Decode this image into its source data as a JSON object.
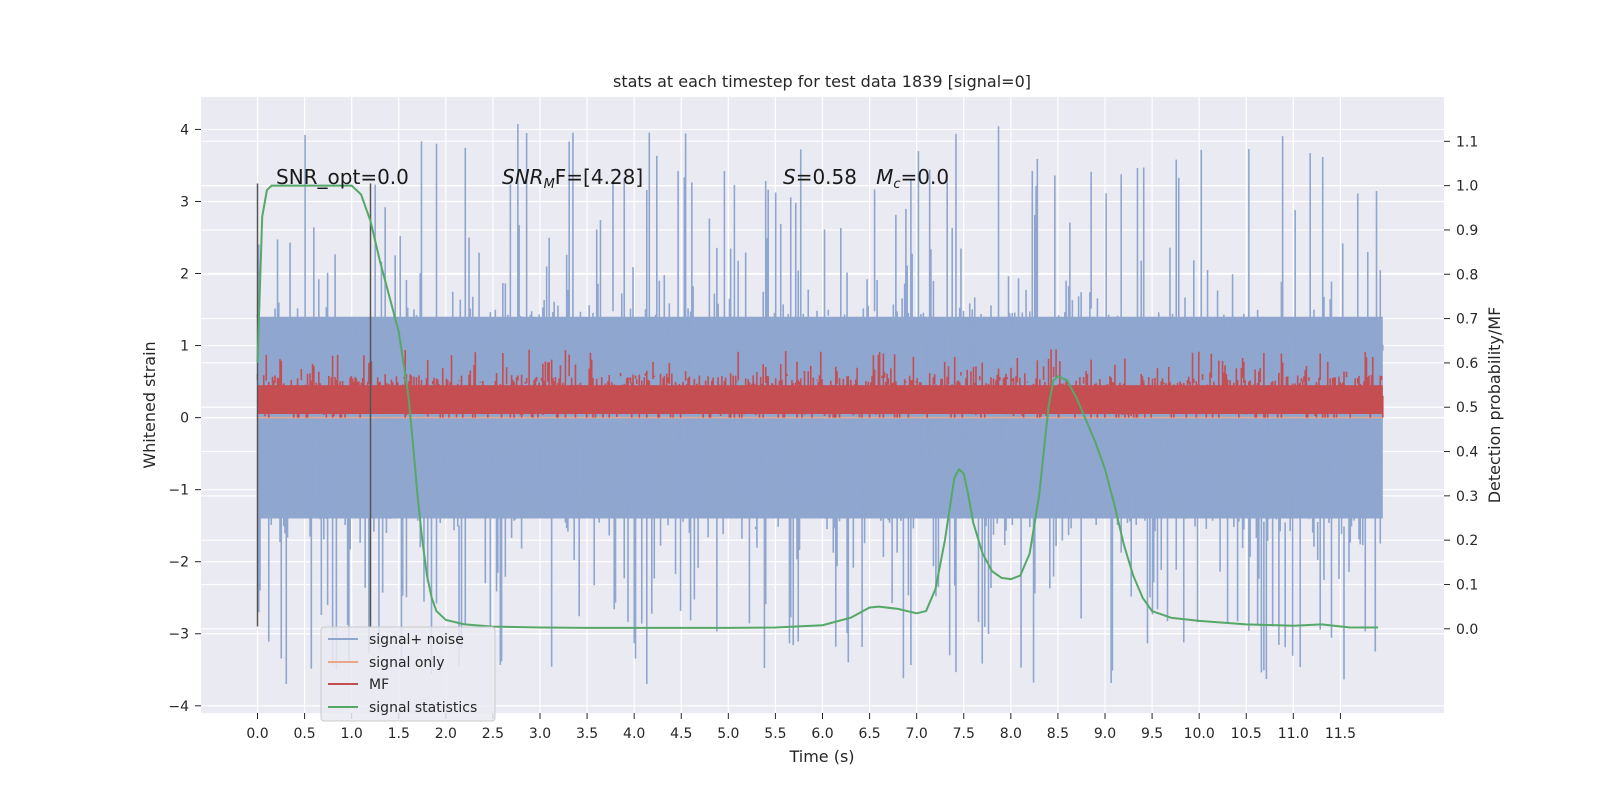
{
  "chart_data": {
    "type": "line",
    "title": "stats at each timestep for test data 1839 [signal=0]",
    "xlabel": "Time (s)",
    "ylabel_left": "Whitened strain",
    "ylabel_right": "Detection probability/MF",
    "xlim": [
      -0.6,
      12.6
    ],
    "ylim_left": [
      -4.1,
      4.45
    ],
    "ylim_right": [
      -0.19,
      1.2
    ],
    "x_ticks": [
      0.0,
      0.5,
      1.0,
      1.5,
      2.0,
      2.5,
      3.0,
      3.5,
      4.0,
      4.5,
      5.0,
      5.5,
      6.0,
      6.5,
      7.0,
      7.5,
      8.0,
      8.5,
      9.0,
      9.5,
      10.0,
      10.5,
      11.0,
      11.5
    ],
    "x_tick_labels": [
      "0.0",
      "0.5",
      "1.0",
      "1.5",
      "2.0",
      "2.5",
      "3.0",
      "3.5",
      "4.0",
      "4.5",
      "5.0",
      "5.5",
      "6.0",
      "6.5",
      "7.0",
      "7.5",
      "8.0",
      "8.5",
      "9.0",
      "9.5",
      "10.0",
      "10.5",
      "11.0",
      "11.5"
    ],
    "y_left_ticks": [
      -4,
      -3,
      -2,
      -1,
      0,
      1,
      2,
      3,
      4
    ],
    "y_left_tick_labels": [
      "−4",
      "−3",
      "−2",
      "−1",
      "0",
      "1",
      "2",
      "3",
      "4"
    ],
    "y_right_ticks": [
      0.0,
      0.1,
      0.2,
      0.3,
      0.4,
      0.5,
      0.6,
      0.7,
      0.8,
      0.9,
      1.0,
      1.1
    ],
    "y_right_tick_labels": [
      "0.0",
      "0.1",
      "0.2",
      "0.3",
      "0.4",
      "0.5",
      "0.6",
      "0.7",
      "0.8",
      "0.9",
      "1.0",
      "1.1"
    ],
    "grid": true,
    "legend_position": "lower-left",
    "series": [
      {
        "name": "signal+ noise",
        "axis": "left",
        "color": "#8fa6cf",
        "kind": "noise",
        "x_range": [
          0.0,
          11.95
        ],
        "typical_range": [
          -1.9,
          1.9
        ],
        "peak_range": [
          -3.7,
          4.1
        ]
      },
      {
        "name": "signal only",
        "axis": "left",
        "color": "#e8a88c",
        "x": [
          0.0,
          11.95
        ],
        "y": [
          0.0,
          0.0
        ]
      },
      {
        "name": "MF",
        "axis": "left",
        "color": "#c44e52",
        "kind": "noise",
        "x_range": [
          0.0,
          11.95
        ],
        "typical_range": [
          0.0,
          0.65
        ],
        "peak_range": [
          0.0,
          0.95
        ]
      },
      {
        "name": "signal statistics",
        "axis": "right",
        "color": "#55a868",
        "x": [
          0.0,
          0.05,
          0.1,
          0.15,
          0.2,
          0.3,
          0.5,
          0.8,
          1.0,
          1.1,
          1.2,
          1.3,
          1.4,
          1.5,
          1.6,
          1.65,
          1.7,
          1.75,
          1.8,
          1.85,
          1.9,
          2.0,
          2.2,
          2.5,
          3.0,
          3.5,
          4.0,
          5.0,
          5.5,
          6.0,
          6.3,
          6.5,
          6.6,
          6.8,
          7.0,
          7.1,
          7.2,
          7.3,
          7.4,
          7.45,
          7.5,
          7.55,
          7.6,
          7.7,
          7.8,
          7.9,
          8.0,
          8.1,
          8.2,
          8.3,
          8.4,
          8.45,
          8.5,
          8.6,
          8.7,
          8.8,
          8.9,
          9.0,
          9.1,
          9.2,
          9.3,
          9.4,
          9.5,
          9.7,
          10.0,
          10.5,
          11.0,
          11.3,
          11.6,
          11.9
        ],
        "y": [
          0.6,
          0.93,
          0.99,
          1.0,
          1.0,
          1.0,
          1.0,
          1.0,
          1.0,
          0.98,
          0.92,
          0.83,
          0.75,
          0.67,
          0.53,
          0.42,
          0.3,
          0.2,
          0.12,
          0.07,
          0.04,
          0.02,
          0.01,
          0.005,
          0.003,
          0.002,
          0.002,
          0.002,
          0.003,
          0.008,
          0.025,
          0.048,
          0.05,
          0.045,
          0.035,
          0.04,
          0.09,
          0.2,
          0.34,
          0.36,
          0.35,
          0.3,
          0.24,
          0.17,
          0.13,
          0.115,
          0.112,
          0.12,
          0.17,
          0.3,
          0.5,
          0.56,
          0.57,
          0.56,
          0.52,
          0.47,
          0.42,
          0.36,
          0.28,
          0.19,
          0.12,
          0.07,
          0.04,
          0.025,
          0.018,
          0.01,
          0.007,
          0.01,
          0.003,
          0.003
        ]
      }
    ],
    "vertical_lines": [
      {
        "x": 0.0,
        "y_range": [
          -2.9,
          3.25
        ]
      },
      {
        "x": 1.2,
        "y_range": [
          -2.9,
          3.25
        ]
      }
    ],
    "annotations": [
      {
        "text": "SNR_opt=0.0",
        "x": 0.2,
        "y": 3.2
      },
      {
        "text": "SNR_MF=[4.28]",
        "x": 2.6,
        "y": 3.2
      },
      {
        "text": "S=0.58   M_c=0.0",
        "x": 5.6,
        "y": 3.2
      }
    ],
    "annotation_display": {
      "snr_opt": "SNR_opt=0.0",
      "snr_mf_main": "SNR",
      "snr_mf_sub": "M",
      "snr_mf_rest": "F=[4.28]",
      "s_var": "S",
      "s_value": "=0.58   ",
      "mc_var": "M",
      "mc_sub": "c",
      "mc_value": "=0.0"
    }
  },
  "colors": {
    "axes_background": "#eaeaf2",
    "grid": "#ffffff",
    "vline": "#555555"
  }
}
